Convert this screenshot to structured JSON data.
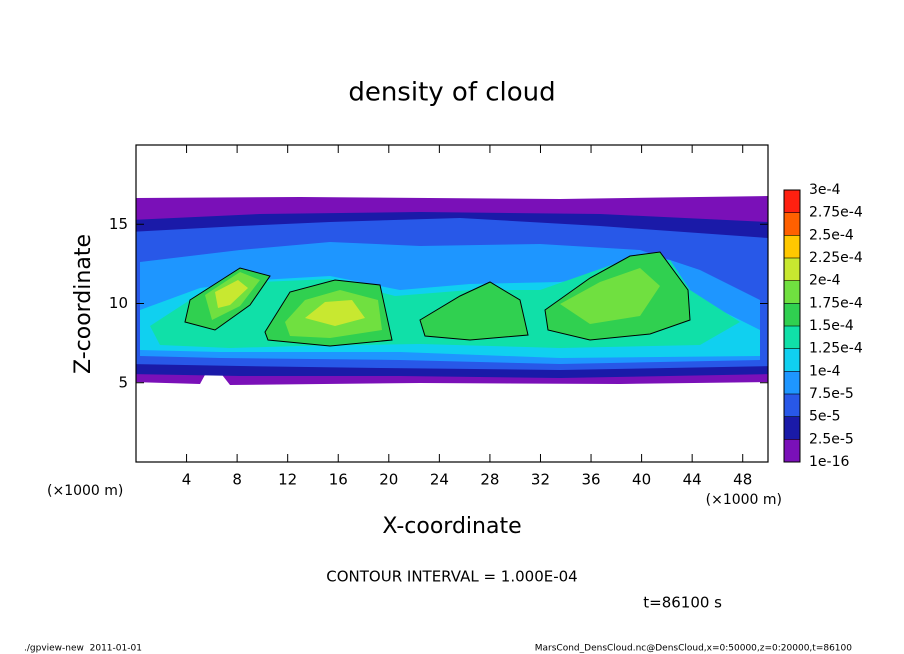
{
  "chart_data": {
    "type": "contour",
    "title": "density of cloud",
    "x_label": "X-coordinate",
    "y_label": "Z-coordinate",
    "x_unit": "(×1000 m)",
    "y_unit": "(×1000 m)",
    "xlim": [
      0,
      50
    ],
    "ylim": [
      0,
      20
    ],
    "xticks": [
      4,
      8,
      12,
      16,
      20,
      24,
      28,
      32,
      36,
      40,
      44,
      48
    ],
    "yticks": [
      5,
      10,
      15
    ],
    "contour_interval": "CONTOUR INTERVAL = 1.000E-04",
    "time": "t=86100 s",
    "colorbar": {
      "levels": [
        {
          "value": 1e-16,
          "label": "1e-16"
        },
        {
          "value": 2.5e-05,
          "label": "2.5e-5"
        },
        {
          "value": 5e-05,
          "label": "5e-5"
        },
        {
          "value": 7.5e-05,
          "label": "7.5e-5"
        },
        {
          "value": 0.0001,
          "label": "1e-4"
        },
        {
          "value": 0.000125,
          "label": "1.25e-4"
        },
        {
          "value": 0.00015,
          "label": "1.5e-4"
        },
        {
          "value": 0.000175,
          "label": "1.75e-4"
        },
        {
          "value": 0.0002,
          "label": "2e-4"
        },
        {
          "value": 0.000225,
          "label": "2.25e-4"
        },
        {
          "value": 0.00025,
          "label": "2.5e-4"
        },
        {
          "value": 0.000275,
          "label": "2.75e-4"
        },
        {
          "value": 0.0003,
          "label": "3e-4"
        }
      ],
      "colors": [
        "#7a10b8",
        "#1a1aa8",
        "#2858e8",
        "#1e96ff",
        "#10d0f0",
        "#10e0a8",
        "#30d050",
        "#70e040",
        "#c8e830",
        "#ffc800",
        "#ff6000",
        "#ff2010"
      ]
    }
  },
  "footer": {
    "left": "./gpview-new  2011-01-01",
    "right": "MarsCond_DensCloud.nc@DensCloud,x=0:50000,z=0:20000,t=86100"
  }
}
